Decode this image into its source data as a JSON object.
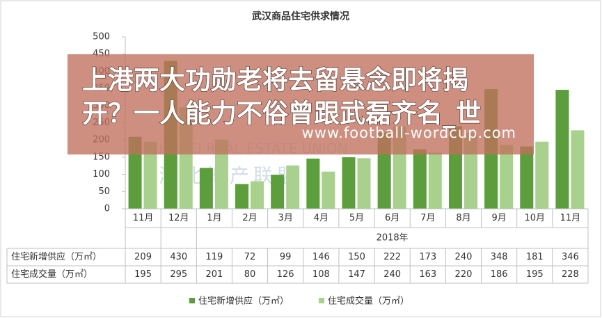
{
  "chart_data": {
    "type": "bar",
    "title": "武汉商品住宅供求情况",
    "categories": [
      "11月",
      "12月",
      "1月",
      "2月",
      "3月",
      "4月",
      "5月",
      "6月",
      "7月",
      "8月",
      "9月",
      "10月",
      "11月"
    ],
    "group_label": "2018年",
    "series": [
      {
        "name": "住宅新增供应（万㎡）",
        "color": "#5b9e3b",
        "values": [
          209,
          430,
          119,
          72,
          99,
          146,
          150,
          222,
          173,
          240,
          348,
          181,
          346
        ]
      },
      {
        "name": "住宅成交量（万㎡）",
        "color": "#a9d18e",
        "values": [
          195,
          295,
          201,
          80,
          126,
          108,
          147,
          240,
          163,
          220,
          186,
          195,
          228
        ]
      }
    ],
    "ylim": [
      0,
      500
    ],
    "yticks": [
      0,
      50,
      100,
      150,
      200,
      250,
      300,
      350,
      400,
      450,
      500
    ],
    "legend": "bottom"
  },
  "watermark": {
    "en": "HUBEI REAL ESTATE UNION",
    "cn": "湖北地产联盟"
  },
  "banner": {
    "lines": [
      "上港两大功勋老将去留悬念即将揭",
      "开？一人能力不俗曾跟武磊齐名_世"
    ],
    "url": "www.football-wordcup.com"
  }
}
